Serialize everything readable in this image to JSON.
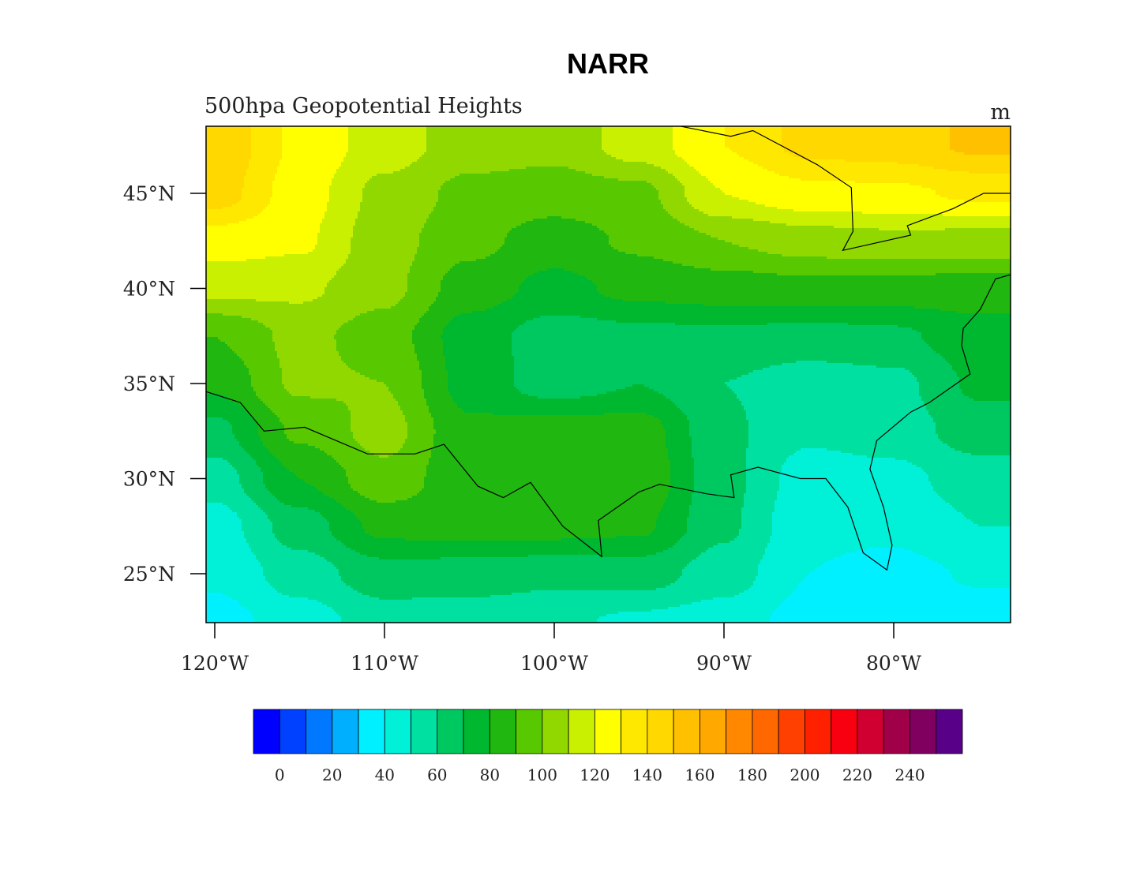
{
  "chart_data": {
    "type": "heatmap",
    "title": "NARR",
    "subtitle": "500hpa Geopotential Heights",
    "units": "m",
    "lon_ticks": [
      -120,
      -110,
      -100,
      -90,
      -80
    ],
    "lon_tick_labels": [
      "120°W",
      "110°W",
      "100°W",
      "90°W",
      "80°W"
    ],
    "lat_ticks": [
      45,
      40,
      35,
      30,
      25
    ],
    "lat_tick_labels": [
      "45°N",
      "40°N",
      "35°N",
      "30°N",
      "25°N"
    ],
    "xlim": [
      -120.5,
      -73.2
    ],
    "ylim": [
      22.4,
      48.5
    ],
    "grid": {
      "lon": [
        -120,
        -115,
        -110,
        -105,
        -100,
        -95,
        -90,
        -85,
        -80,
        -75
      ],
      "lat": [
        47.5,
        45,
        42.5,
        40,
        37.5,
        35,
        32.5,
        30,
        27.5,
        25,
        22.5
      ],
      "values": [
        [
          148,
          128,
          115,
          105,
          103,
          115,
          130,
          143,
          145,
          152
        ],
        [
          145,
          125,
          107,
          97,
          95,
          97,
          120,
          127,
          128,
          132
        ],
        [
          125,
          122,
          104,
          93,
          85,
          92,
          100,
          105,
          107,
          106
        ],
        [
          113,
          112,
          103,
          85,
          77,
          83,
          85,
          87,
          86,
          85
        ],
        [
          90,
          103,
          95,
          75,
          65,
          67,
          68,
          66,
          68,
          76
        ],
        [
          82,
          102,
          100,
          76,
          65,
          70,
          60,
          55,
          57,
          72
        ],
        [
          67,
          92,
          104,
          82,
          85,
          85,
          62,
          52,
          55,
          65
        ],
        [
          55,
          80,
          97,
          82,
          87,
          88,
          63,
          45,
          47,
          55
        ],
        [
          45,
          65,
          83,
          85,
          84,
          82,
          62,
          42,
          42,
          50
        ],
        [
          42,
          55,
          66,
          65,
          63,
          65,
          55,
          40,
          37,
          41
        ],
        [
          36,
          45,
          55,
          55,
          52,
          48,
          45,
          36,
          35,
          36
        ]
      ]
    },
    "colorbar": {
      "levels": [
        0,
        10,
        20,
        30,
        40,
        50,
        60,
        70,
        80,
        90,
        100,
        110,
        120,
        130,
        140,
        150,
        160,
        170,
        180,
        190,
        200,
        210,
        220,
        230,
        240,
        250
      ],
      "labels": [
        "0",
        "20",
        "40",
        "60",
        "80",
        "100",
        "120",
        "140",
        "160",
        "180",
        "200",
        "220",
        "240"
      ],
      "colors": [
        "#0000ff",
        "#0040ff",
        "#0078ff",
        "#00b0ff",
        "#00f0ff",
        "#00f0d8",
        "#00e0a0",
        "#00c860",
        "#00b830",
        "#20b810",
        "#58c800",
        "#90d800",
        "#c8f000",
        "#ffff00",
        "#ffe800",
        "#ffd800",
        "#ffc000",
        "#ffa800",
        "#ff8800",
        "#ff6800",
        "#ff4000",
        "#ff2000",
        "#f80010",
        "#d00030",
        "#a00048",
        "#800060",
        "#580088"
      ]
    }
  }
}
